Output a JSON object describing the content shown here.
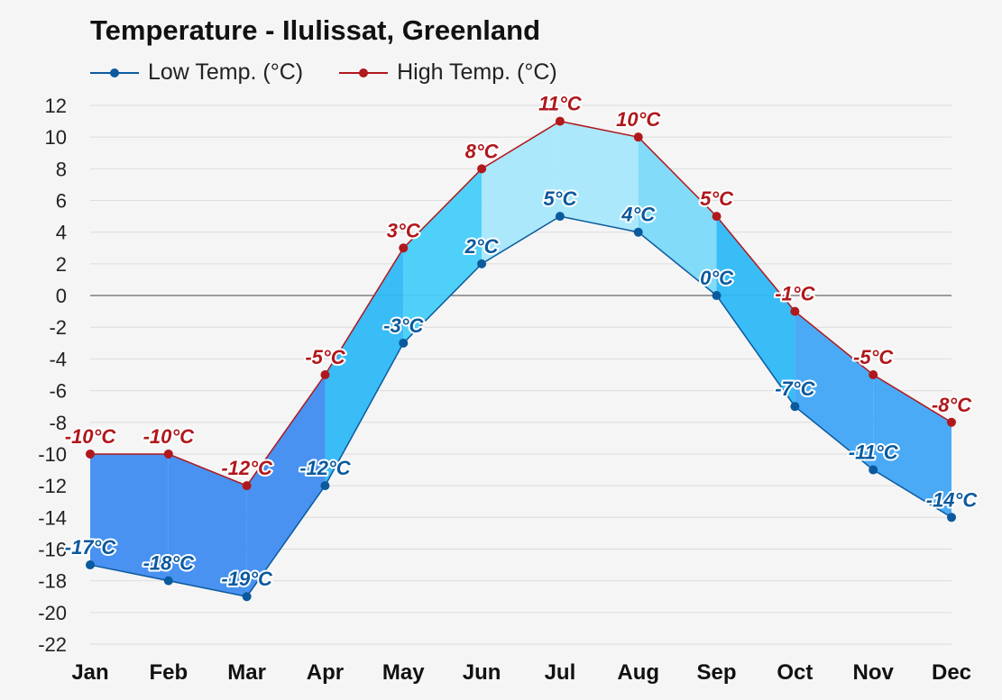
{
  "chart_data": {
    "type": "line",
    "title": "Temperature - Ilulissat, Greenland",
    "xlabel": "",
    "ylabel": "",
    "categories": [
      "Jan",
      "Feb",
      "Mar",
      "Apr",
      "May",
      "Jun",
      "Jul",
      "Aug",
      "Sep",
      "Oct",
      "Nov",
      "Dec"
    ],
    "series": [
      {
        "name": "Low Temp. (°C)",
        "color": "#0b5a9e",
        "values": [
          -17,
          -18,
          -19,
          -12,
          -3,
          2,
          5,
          4,
          0,
          -7,
          -11,
          -14
        ],
        "labels": [
          "-17°C",
          "-18°C",
          "-19°C",
          "-12°C",
          "-3°C",
          "2°C",
          "5°C",
          "4°C",
          "0°C",
          "-7°C",
          "-11°C",
          "-14°C"
        ]
      },
      {
        "name": "High Temp. (°C)",
        "color": "#b0181c",
        "values": [
          -10,
          -10,
          -12,
          -5,
          3,
          8,
          11,
          10,
          5,
          -1,
          -5,
          -8
        ],
        "labels": [
          "-10°C",
          "-10°C",
          "-12°C",
          "-5°C",
          "3°C",
          "8°C",
          "11°C",
          "10°C",
          "5°C",
          "-1°C",
          "-5°C",
          "-8°C"
        ]
      }
    ],
    "ylim": [
      -22,
      12
    ],
    "y_ticks": [
      "12",
      "10",
      "8",
      "6",
      "4",
      "2",
      "0",
      "-2",
      "-4",
      "-6",
      "-8",
      "-10",
      "-12",
      "-14",
      "-16",
      "-18",
      "-20",
      "-22"
    ],
    "grid": true,
    "legend_position": "top-left",
    "band_fill": "shaded band between low and high, colored by temperature"
  }
}
